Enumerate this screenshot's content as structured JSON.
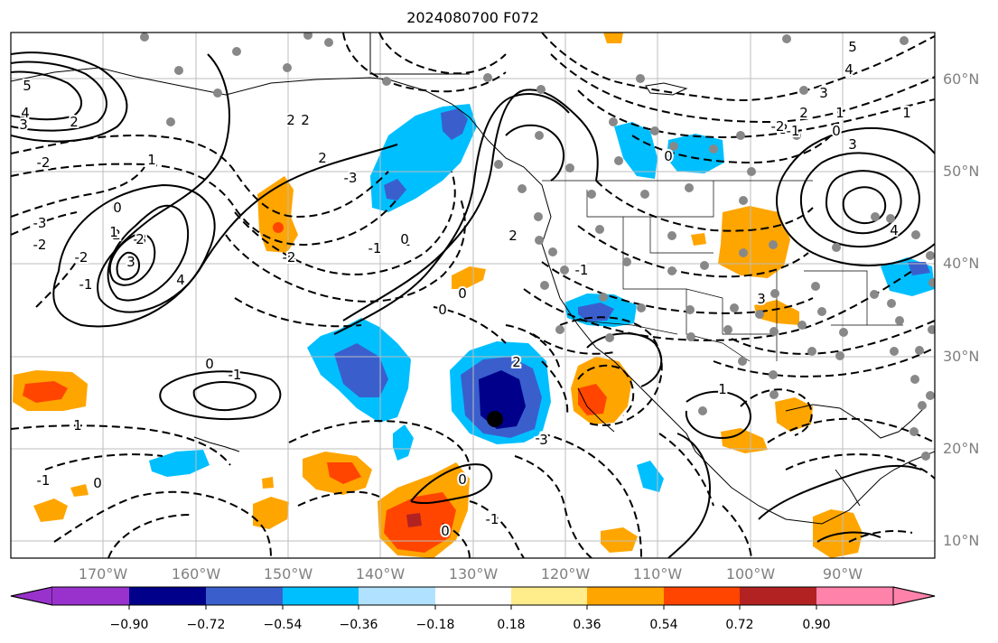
{
  "title": "2024080700 F072",
  "latitude_labels": [
    "60°N",
    "50°N",
    "40°N",
    "30°N",
    "20°N",
    "10°N"
  ],
  "longitude_labels": [
    "170°W",
    "160°W",
    "150°W",
    "140°W",
    "130°W",
    "120°W",
    "110°W",
    "100°W",
    "90°W"
  ],
  "colorbar": {
    "ticks": [
      "−0.90",
      "−0.72",
      "−0.54",
      "−0.36",
      "−0.18",
      "0.18",
      "0.36",
      "0.54",
      "0.72",
      "0.90"
    ],
    "colors": [
      "#9932cc",
      "#00008b",
      "#3a5fcd",
      "#00bfff",
      "#b0e2ff",
      "#ffffff",
      "#ffec8b",
      "#ffa500",
      "#ff4500",
      "#b22222",
      "#ff82ab"
    ]
  },
  "contour_labels": [
    "5",
    "4",
    "3",
    "2",
    "2",
    "2",
    "1",
    "0",
    "-1",
    "-2",
    "-3",
    "2",
    "-3",
    "-2",
    "-1",
    "0",
    "1",
    "2",
    "3",
    "4",
    "1",
    "-1",
    "0",
    "2",
    "-2",
    "-3",
    "-2",
    "1",
    "2",
    "3",
    "4",
    "5",
    "4",
    "3",
    "2",
    "1",
    "0",
    "-1",
    "-2",
    "3",
    "2",
    "0",
    "-1",
    "0",
    "1",
    "0",
    "0",
    "-1",
    "1",
    "0",
    "-1",
    "0",
    "-1",
    "0",
    "-1",
    "2",
    "3"
  ]
}
